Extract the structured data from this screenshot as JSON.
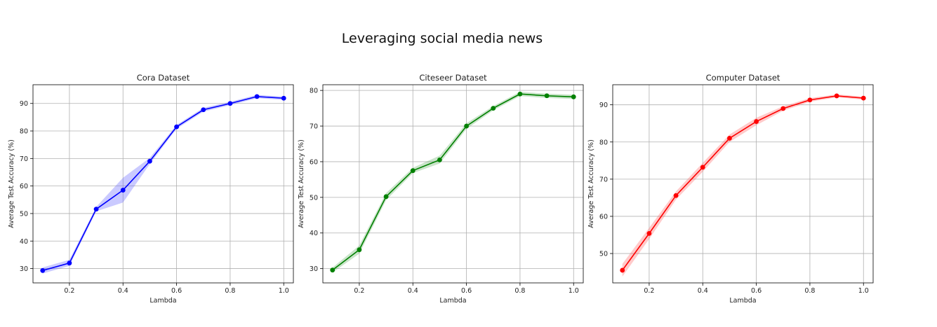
{
  "suptitle": "Leveraging social media news",
  "chart_data": [
    {
      "type": "line",
      "title": "Cora Dataset",
      "xlabel": "Lambda",
      "ylabel": "Average Test Accuracy (%)",
      "color": "#0000ff",
      "band_color": "#6666ff",
      "grid": true,
      "xlim": [
        0.064,
        1.036
      ],
      "ylim": [
        24.8,
        96.8
      ],
      "xticks": [
        0.2,
        0.4,
        0.6,
        0.8,
        1.0
      ],
      "xtick_labels": [
        "0.2",
        "0.4",
        "0.6",
        "0.8",
        "1.0"
      ],
      "yticks": [
        30,
        40,
        50,
        60,
        70,
        80,
        90
      ],
      "ytick_labels": [
        "30",
        "40",
        "50",
        "60",
        "70",
        "80",
        "90"
      ],
      "x": [
        0.1,
        0.2,
        0.3,
        0.4,
        0.5,
        0.6,
        0.7,
        0.8,
        0.9,
        1.0
      ],
      "values": [
        29.3,
        32.0,
        51.6,
        58.5,
        69.0,
        81.5,
        87.7,
        90.0,
        92.5,
        91.9
      ],
      "lower": [
        28.2,
        31.0,
        50.8,
        54.0,
        68.0,
        80.8,
        87.0,
        89.4,
        91.9,
        91.3
      ],
      "upper": [
        30.4,
        33.2,
        52.4,
        63.0,
        70.2,
        82.2,
        88.4,
        90.6,
        93.1,
        92.5
      ]
    },
    {
      "type": "line",
      "title": "Citeseer Dataset",
      "xlabel": "Lambda",
      "ylabel": "Average Test Accuracy (%)",
      "color": "#008000",
      "band_color": "#66b266",
      "grid": true,
      "xlim": [
        0.064,
        1.036
      ],
      "ylim": [
        26.0,
        81.6
      ],
      "xticks": [
        0.2,
        0.4,
        0.6,
        0.8,
        1.0
      ],
      "xtick_labels": [
        "0.2",
        "0.4",
        "0.6",
        "0.8",
        "1.0"
      ],
      "yticks": [
        30,
        40,
        50,
        60,
        70,
        80
      ],
      "ytick_labels": [
        "30",
        "40",
        "50",
        "60",
        "70",
        "80"
      ],
      "x": [
        0.1,
        0.2,
        0.3,
        0.4,
        0.5,
        0.6,
        0.7,
        0.8,
        0.9,
        1.0
      ],
      "values": [
        29.6,
        35.3,
        50.2,
        57.5,
        60.5,
        70.0,
        75.0,
        79.0,
        78.5,
        78.2
      ],
      "lower": [
        28.9,
        34.2,
        49.2,
        56.8,
        59.5,
        69.2,
        74.4,
        78.4,
        77.9,
        77.6
      ],
      "upper": [
        30.3,
        36.5,
        51.2,
        58.3,
        61.7,
        70.8,
        75.6,
        79.6,
        79.1,
        78.8
      ]
    },
    {
      "type": "line",
      "title": "Computer Dataset",
      "xlabel": "Lambda",
      "ylabel": "Average Test Accuracy (%)",
      "color": "#ff0000",
      "band_color": "#ff6666",
      "grid": true,
      "xlim": [
        0.064,
        1.036
      ],
      "ylim": [
        42.1,
        95.4
      ],
      "xticks": [
        0.2,
        0.4,
        0.6,
        0.8,
        1.0
      ],
      "xtick_labels": [
        "0.2",
        "0.4",
        "0.6",
        "0.8",
        "1.0"
      ],
      "yticks": [
        50,
        60,
        70,
        80,
        90
      ],
      "ytick_labels": [
        "50",
        "60",
        "70",
        "80",
        "90"
      ],
      "x": [
        0.1,
        0.2,
        0.3,
        0.4,
        0.5,
        0.6,
        0.7,
        0.8,
        0.9,
        1.0
      ],
      "values": [
        45.5,
        55.4,
        65.6,
        73.2,
        81.0,
        85.5,
        89.0,
        91.3,
        92.4,
        91.8
      ],
      "lower": [
        43.8,
        53.9,
        64.5,
        72.0,
        80.0,
        84.5,
        88.4,
        90.8,
        92.0,
        91.4
      ],
      "upper": [
        47.2,
        56.9,
        66.7,
        74.4,
        82.0,
        86.5,
        89.6,
        91.8,
        92.8,
        92.2
      ]
    }
  ]
}
